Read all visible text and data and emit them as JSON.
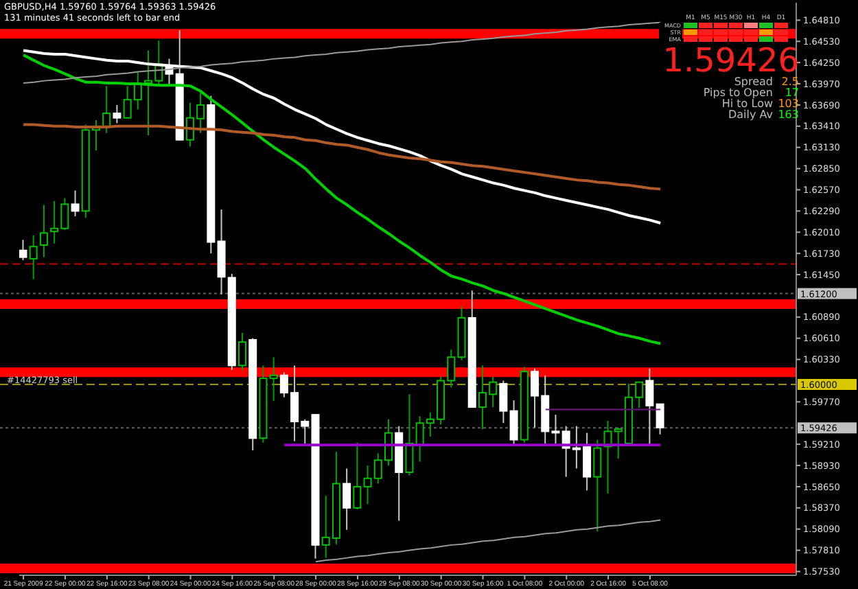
{
  "chart_data": {
    "type": "candlestick",
    "title": "GBPUSD,H4 1.59760 1.59764 1.59363 1.59426",
    "subtitle": "131 minutes 41 seconds left to bar end",
    "categories": [
      "21 Sep 2009",
      null,
      null,
      null,
      "22 Sep 00:00",
      null,
      null,
      null,
      "22 Sep 16:00",
      null,
      null,
      null,
      "23 Sep 08:00",
      null,
      null,
      null,
      "24 Sep 00:00",
      null,
      null,
      null,
      "24 Sep 16:00",
      null,
      null,
      null,
      "25 Sep 08:00",
      null,
      null,
      null,
      "28 Sep 00:00",
      null,
      null,
      null,
      "28 Sep 16:00",
      null,
      null,
      null,
      "29 Sep 08:00",
      null,
      null,
      null,
      "30 Sep 00:00",
      null,
      null,
      null,
      "30 Sep 16:00",
      null,
      null,
      null,
      "1 Oct 08:00",
      null,
      null,
      null,
      "2 Oct 00:00",
      null,
      null,
      null,
      "2 Oct 16:00",
      null,
      null,
      null,
      "5 Oct 08:00",
      null
    ],
    "ohlc": [
      [
        1.6177,
        1.6191,
        1.6164,
        1.6168
      ],
      [
        1.6166,
        1.6197,
        1.6139,
        1.6182
      ],
      [
        1.6184,
        1.6237,
        1.6168,
        1.62
      ],
      [
        1.6202,
        1.6242,
        1.6186,
        1.6206
      ],
      [
        1.6206,
        1.6246,
        1.6204,
        1.6238
      ],
      [
        1.6238,
        1.6256,
        1.6222,
        1.6229
      ],
      [
        1.6229,
        1.6343,
        1.622,
        1.6336
      ],
      [
        1.6336,
        1.6349,
        1.6309,
        1.6341
      ],
      [
        1.6341,
        1.6394,
        1.6332,
        1.6358
      ],
      [
        1.6358,
        1.6369,
        1.6345,
        1.6352
      ],
      [
        1.6352,
        1.6394,
        1.6351,
        1.6376
      ],
      [
        1.6376,
        1.6412,
        1.6363,
        1.6398
      ],
      [
        1.6398,
        1.6441,
        1.6329,
        1.6401
      ],
      [
        1.6401,
        1.6454,
        1.6396,
        1.6423
      ],
      [
        1.6421,
        1.643,
        1.6394,
        1.641
      ],
      [
        1.641,
        1.6468,
        1.6322,
        1.6323
      ],
      [
        1.6323,
        1.6372,
        1.6314,
        1.6352
      ],
      [
        1.6351,
        1.6387,
        1.6332,
        1.6369
      ],
      [
        1.6369,
        1.6381,
        1.6173,
        1.6188
      ],
      [
        1.6189,
        1.6231,
        1.6119,
        1.6142
      ],
      [
        1.6141,
        1.6146,
        1.6019,
        1.6025
      ],
      [
        1.6025,
        1.6068,
        1.6019,
        1.6056
      ],
      [
        1.6059,
        1.6061,
        1.5913,
        1.5929
      ],
      [
        1.5929,
        1.6025,
        1.5923,
        1.6008
      ],
      [
        1.6008,
        1.6036,
        1.5978,
        1.6012
      ],
      [
        1.6012,
        1.6016,
        1.5983,
        1.5989
      ],
      [
        1.5989,
        1.6025,
        1.5925,
        1.5951
      ],
      [
        1.5951,
        1.5954,
        1.5922,
        1.5945
      ],
      [
        1.596,
        1.5961,
        1.577,
        1.5788
      ],
      [
        1.5788,
        1.5853,
        1.5771,
        1.5798
      ],
      [
        1.5797,
        1.5911,
        1.5789,
        1.5869
      ],
      [
        1.5869,
        1.5889,
        1.5808,
        1.5837
      ],
      [
        1.5837,
        1.5923,
        1.5835,
        1.5865
      ],
      [
        1.5865,
        1.5893,
        1.5842,
        1.5876
      ],
      [
        1.5876,
        1.5909,
        1.5869,
        1.59
      ],
      [
        1.59,
        1.5954,
        1.5893,
        1.5936
      ],
      [
        1.5936,
        1.5945,
        1.582,
        1.5884
      ],
      [
        1.5884,
        1.5987,
        1.588,
        1.5922
      ],
      [
        1.592,
        1.5958,
        1.5898,
        1.5949
      ],
      [
        1.5949,
        1.5963,
        1.5931,
        1.5954
      ],
      [
        1.5954,
        1.601,
        1.5947,
        1.6005
      ],
      [
        1.6005,
        1.6046,
        1.5996,
        1.6036
      ],
      [
        1.6036,
        1.6103,
        1.6032,
        1.6088
      ],
      [
        1.6088,
        1.6124,
        1.597,
        1.597
      ],
      [
        1.597,
        1.6025,
        1.5941,
        1.5989
      ],
      [
        1.5987,
        1.601,
        1.597,
        1.6003
      ],
      [
        1.6001,
        1.6005,
        1.5949,
        1.5965
      ],
      [
        1.5965,
        1.5979,
        1.592,
        1.5927
      ],
      [
        1.5927,
        1.6023,
        1.5923,
        1.6017
      ],
      [
        1.6017,
        1.6021,
        1.5943,
        1.5985
      ],
      [
        1.5985,
        1.6012,
        1.5922,
        1.5938
      ],
      [
        1.5938,
        1.596,
        1.5922,
        1.5938
      ],
      [
        1.5938,
        1.5945,
        1.5878,
        1.5916
      ],
      [
        1.5916,
        1.5945,
        1.5889,
        1.5916
      ],
      [
        1.5918,
        1.5936,
        1.586,
        1.5878
      ],
      [
        1.5878,
        1.5927,
        1.5806,
        1.5916
      ],
      [
        1.5918,
        1.5952,
        1.5856,
        1.5938
      ],
      [
        1.5938,
        1.5943,
        1.5902,
        1.5941
      ],
      [
        1.5922,
        1.6001,
        1.5922,
        1.5983
      ],
      [
        1.5983,
        1.6003,
        1.5969,
        1.6003
      ],
      [
        1.6005,
        1.6021,
        1.592,
        1.5972
      ],
      [
        1.5974,
        1.5974,
        1.5934,
        1.5943
      ]
    ],
    "series": [
      {
        "type": "line",
        "color": "#ffffff",
        "values": [
          1.6441,
          1.6439,
          1.6437,
          1.6436,
          1.6436,
          1.6434,
          1.6432,
          1.643,
          1.6428,
          1.6427,
          1.6427,
          1.6425,
          1.6423,
          1.6422,
          1.6421,
          1.642,
          1.6419,
          1.6418,
          1.6414,
          1.641,
          1.6405,
          1.6398,
          1.639,
          1.6383,
          1.6378,
          1.637,
          1.6363,
          1.6357,
          1.6351,
          1.6343,
          1.6337,
          1.6331,
          1.6326,
          1.6322,
          1.6318,
          1.6315,
          1.6311,
          1.6307,
          1.6302,
          1.6295,
          1.6289,
          1.6284,
          1.6278,
          1.6274,
          1.627,
          1.6266,
          1.6263,
          1.6259,
          1.6256,
          1.6253,
          1.6249,
          1.6246,
          1.6243,
          1.624,
          1.6237,
          1.6234,
          1.6231,
          1.6227,
          1.6223,
          1.622,
          1.6217,
          1.6213
        ]
      },
      {
        "type": "line",
        "color": "#00d000",
        "values": [
          1.6435,
          1.6428,
          1.6421,
          1.6416,
          1.641,
          1.6404,
          1.6399,
          1.6399,
          1.6398,
          1.6398,
          1.6397,
          1.6397,
          1.6396,
          1.6395,
          1.6395,
          1.6395,
          1.6394,
          1.6387,
          1.6376,
          1.6366,
          1.6356,
          1.6345,
          1.6334,
          1.6323,
          1.6313,
          1.6304,
          1.6295,
          1.6285,
          1.6271,
          1.6258,
          1.6246,
          1.6237,
          1.6227,
          1.6218,
          1.6208,
          1.6199,
          1.6189,
          1.618,
          1.617,
          1.6161,
          1.6151,
          1.6143,
          1.6139,
          1.6134,
          1.613,
          1.6124,
          1.612,
          1.6115,
          1.611,
          1.6105,
          1.61,
          1.6095,
          1.609,
          1.6085,
          1.6081,
          1.6077,
          1.6072,
          1.6067,
          1.6064,
          1.6061,
          1.6057,
          1.6054
        ]
      },
      {
        "type": "line",
        "color": "#b05a28",
        "values": [
          1.6343,
          1.6343,
          1.6342,
          1.6341,
          1.6341,
          1.634,
          1.634,
          1.634,
          1.634,
          1.6341,
          1.6341,
          1.6341,
          1.6341,
          1.6341,
          1.634,
          1.6339,
          1.6338,
          1.6337,
          1.6337,
          1.6336,
          1.6334,
          1.6333,
          1.6332,
          1.633,
          1.6329,
          1.6327,
          1.6326,
          1.6323,
          1.6322,
          1.6319,
          1.6317,
          1.6316,
          1.6313,
          1.631,
          1.6306,
          1.6303,
          1.6301,
          1.6299,
          1.6298,
          1.6296,
          1.6294,
          1.6293,
          1.6291,
          1.6289,
          1.6288,
          1.6286,
          1.6284,
          1.6282,
          1.628,
          1.6278,
          1.6276,
          1.6274,
          1.6272,
          1.627,
          1.6269,
          1.6267,
          1.6266,
          1.6264,
          1.6263,
          1.6261,
          1.6259,
          1.6258
        ]
      },
      {
        "type": "line",
        "color": "#9a9a9a",
        "values": [
          1.6398,
          1.6399,
          1.6401,
          1.6402,
          1.6403,
          1.6405,
          1.6406,
          1.6407,
          1.6409,
          1.641,
          1.6411,
          1.6413,
          1.6414,
          1.6415,
          1.6416,
          1.6418,
          1.6419,
          1.642,
          1.6422,
          1.6423,
          1.6424,
          1.6426,
          1.6427,
          1.6428,
          1.643,
          1.6431,
          1.6432,
          1.6434,
          1.6435,
          1.6436,
          1.6438,
          1.6439,
          1.644,
          1.6442,
          1.6443,
          1.6444,
          1.6446,
          1.6447,
          1.6448,
          1.6449,
          1.6451,
          1.6452,
          1.6453,
          1.6455,
          1.6456,
          1.6457,
          1.6459,
          1.646,
          1.6461,
          1.6463,
          1.6464,
          1.6465,
          1.6467,
          1.6468,
          1.6469,
          1.6471,
          1.6472,
          1.6473,
          1.6475,
          1.6476,
          1.6477,
          1.6478
        ]
      },
      {
        "type": "line",
        "color": "#9a9a9a",
        "values": [
          null,
          null,
          null,
          null,
          null,
          null,
          null,
          null,
          null,
          null,
          null,
          null,
          null,
          null,
          null,
          null,
          null,
          null,
          null,
          null,
          null,
          null,
          null,
          null,
          null,
          null,
          null,
          null,
          1.5766,
          1.5768,
          1.5769,
          1.5771,
          1.5773,
          1.5774,
          1.5776,
          1.5778,
          1.5779,
          1.5781,
          1.5783,
          1.5784,
          1.5786,
          1.5788,
          1.5789,
          1.5791,
          1.5793,
          1.5794,
          1.5796,
          1.5798,
          1.5799,
          1.5801,
          1.5803,
          1.5804,
          1.5806,
          1.5808,
          1.5809,
          1.5811,
          1.5813,
          1.5814,
          1.5816,
          1.5818,
          1.5819,
          1.5821
        ]
      },
      {
        "type": "line",
        "color": "#9900cc",
        "values": [
          null,
          null,
          null,
          null,
          null,
          null,
          null,
          null,
          null,
          null,
          null,
          null,
          null,
          null,
          null,
          null,
          null,
          null,
          null,
          null,
          null,
          null,
          null,
          null,
          null,
          1.592,
          1.592,
          1.592,
          1.592,
          1.592,
          1.592,
          1.592,
          1.592,
          1.592,
          1.592,
          1.592,
          1.592,
          1.592,
          1.592,
          1.592,
          1.592,
          1.592,
          1.592,
          1.592,
          1.592,
          1.592,
          1.592,
          1.592,
          1.592,
          1.592,
          1.592,
          1.592,
          1.592,
          1.592,
          1.592,
          1.592,
          1.592,
          1.592,
          1.592,
          1.592,
          1.592,
          1.592
        ]
      },
      {
        "type": "line",
        "color": "#6a1a7a",
        "values": [
          null,
          null,
          null,
          null,
          null,
          null,
          null,
          null,
          null,
          null,
          null,
          null,
          null,
          null,
          null,
          null,
          null,
          null,
          null,
          null,
          null,
          null,
          null,
          null,
          null,
          null,
          null,
          null,
          null,
          null,
          null,
          null,
          null,
          null,
          null,
          null,
          null,
          null,
          null,
          null,
          null,
          null,
          null,
          null,
          null,
          null,
          null,
          null,
          null,
          null,
          1.5967,
          1.5967,
          1.5967,
          1.5967,
          1.5967,
          1.5967,
          1.5967,
          1.5967,
          1.5967,
          1.5967,
          1.5967,
          1.5967
        ]
      }
    ],
    "ylim": [
      1.5748,
      1.6504
    ],
    "yticks": [
      {
        "value": 1.5753,
        "label": "1.57530"
      },
      {
        "value": 1.5781,
        "label": "1.57810"
      },
      {
        "value": 1.5809,
        "label": "1.58090"
      },
      {
        "value": 1.5837,
        "label": "1.58370"
      },
      {
        "value": 1.5865,
        "label": "1.58650"
      },
      {
        "value": 1.5893,
        "label": "1.58930"
      },
      {
        "value": 1.5921,
        "label": "1.59210"
      },
      {
        "value": 1.5977,
        "label": "1.59770"
      },
      {
        "value": 1.6033,
        "label": "1.60330"
      },
      {
        "value": 1.6061,
        "label": "1.60610"
      },
      {
        "value": 1.6089,
        "label": "1.60890"
      },
      {
        "value": 1.6145,
        "label": "1.61450"
      },
      {
        "value": 1.6173,
        "label": "1.61730"
      },
      {
        "value": 1.6201,
        "label": "1.62010"
      },
      {
        "value": 1.6229,
        "label": "1.62290"
      },
      {
        "value": 1.6257,
        "label": "1.62570"
      },
      {
        "value": 1.6285,
        "label": "1.62850"
      },
      {
        "value": 1.6313,
        "label": "1.63130"
      },
      {
        "value": 1.6341,
        "label": "1.63410"
      },
      {
        "value": 1.6369,
        "label": "1.63690"
      },
      {
        "value": 1.6397,
        "label": "1.63970"
      },
      {
        "value": 1.6425,
        "label": "1.64250"
      },
      {
        "value": 1.6453,
        "label": "1.64530"
      },
      {
        "value": 1.6481,
        "label": "1.64810"
      }
    ],
    "ref_lines": [
      {
        "axis": "y",
        "value": 1.6463,
        "color": "#ff0000",
        "line_style": "solid"
      },
      {
        "axis": "y",
        "value": 1.6106,
        "color": "#ff0000",
        "line_style": "solid"
      },
      {
        "axis": "y",
        "value": 1.6016,
        "color": "#ff0000",
        "line_style": "solid"
      },
      {
        "axis": "y",
        "value": 1.5757,
        "color": "#ff0000",
        "line_style": "solid"
      },
      {
        "axis": "y",
        "value": 1.6159,
        "color": "#c00000",
        "line_style": "dashed"
      },
      {
        "axis": "y",
        "value": 1.612,
        "color": "#606060",
        "line_style": "dotted",
        "label": "1.61200"
      },
      {
        "axis": "y",
        "value": 1.6,
        "color": "#a08c00",
        "line_style": "dashed",
        "label": "1.60000"
      },
      {
        "axis": "y",
        "value": 1.59426,
        "color": "#606060",
        "line_style": "dotted",
        "label": "1.59426"
      }
    ],
    "annotations": [
      "1.59426",
      "Spread 2.5",
      "Pips to Open 17",
      "Hi to Low 103",
      "Daily Av 163",
      "M1",
      "M5",
      "M15",
      "M30",
      "H1",
      "H4",
      "D1",
      "MACD",
      "STR",
      "EMA",
      "#14427793 sell"
    ]
  }
}
